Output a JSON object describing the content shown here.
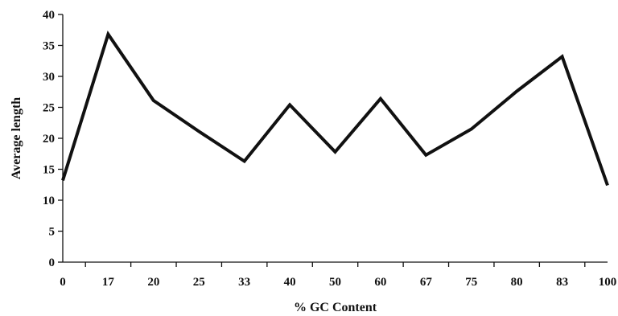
{
  "chart_data": {
    "type": "line",
    "title": "",
    "xlabel": "% GC Content",
    "ylabel": "Average length",
    "categories": [
      "0",
      "17",
      "20",
      "25",
      "33",
      "40",
      "50",
      "60",
      "67",
      "75",
      "80",
      "83",
      "100"
    ],
    "values": [
      13.2,
      36.8,
      26.1,
      21.1,
      16.3,
      25.4,
      17.8,
      26.4,
      17.3,
      21.5,
      27.6,
      33.2,
      12.4
    ],
    "ylim": [
      0,
      40
    ],
    "yticks": [
      "0",
      "5",
      "10",
      "15",
      "20",
      "25",
      "30",
      "35",
      "40"
    ],
    "grid": false,
    "legend": false,
    "line_color": "#111111"
  }
}
